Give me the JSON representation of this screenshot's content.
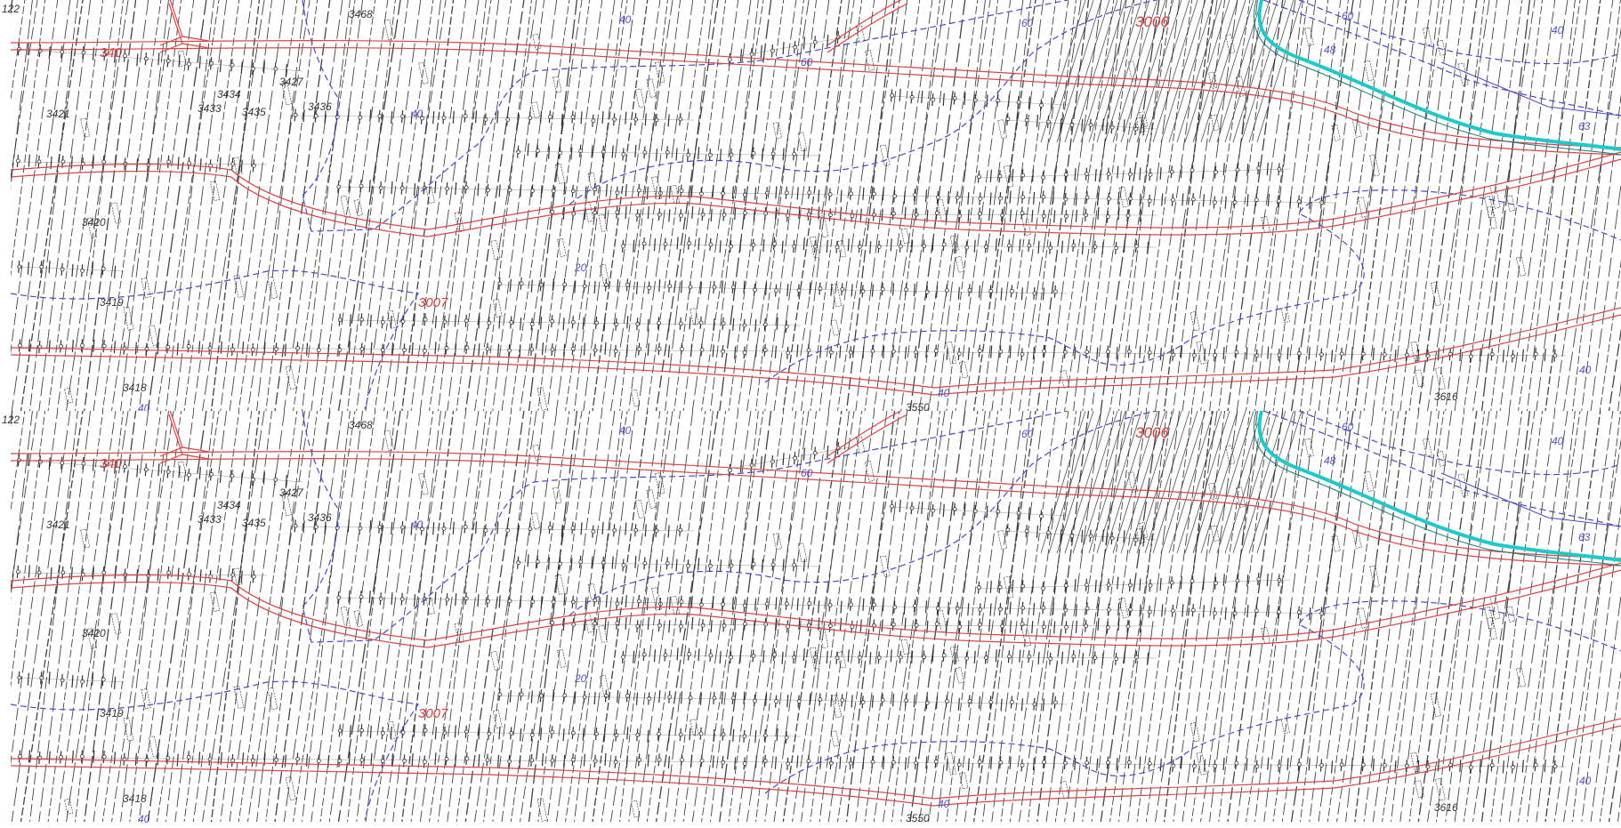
{
  "map": {
    "colors": {
      "background": "#ffffff",
      "hatch": "#222222",
      "road": "#d84545",
      "contour": "#4a4ac8",
      "river": "#1fc9c9",
      "lot": "#333333"
    },
    "panels": [
      "upper",
      "lower"
    ],
    "labels": {
      "corner": "122",
      "p3421": "3421",
      "p3420": "3420",
      "p3419": "3419",
      "p3418": "3418",
      "p3434": "3434",
      "p3433": "3433",
      "p3435": "3435",
      "p3427": "3427",
      "p3436": "3436",
      "p3468": "3468",
      "p3550": "3550",
      "p3616": "3616",
      "c40a": "40",
      "c40b": "40",
      "c40c": "40",
      "c60a": "60",
      "c60b": "60",
      "c60c": "60",
      "c48": "48",
      "c40d": "40",
      "c40e": "40",
      "c20": "20",
      "c63": "63",
      "c40f": "40",
      "r3007": "3007",
      "r3006": "3006",
      "r340": "340"
    }
  }
}
